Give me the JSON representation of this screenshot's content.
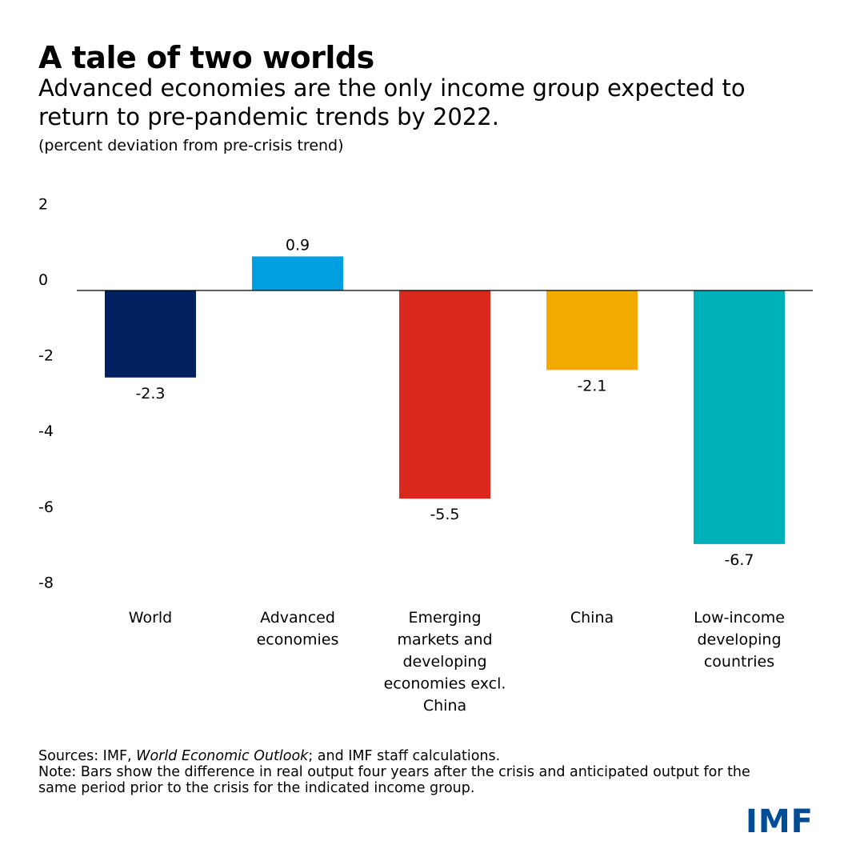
{
  "header": {
    "title": "A tale of two worlds",
    "subtitle": "Advanced economies are the only income group expected to return to pre-pandemic trends by 2022.",
    "unit": "(percent deviation from pre-crisis trend)"
  },
  "chart_data": {
    "type": "bar",
    "title": "A tale of two worlds",
    "ylabel": "percent deviation from pre-crisis trend",
    "xlabel": "",
    "ylim": [
      -8,
      2
    ],
    "yticks": [
      2,
      0,
      -2,
      -4,
      -6,
      -8
    ],
    "ytick_labels": [
      "2",
      "0",
      "-2",
      "-4",
      "-6",
      "-8"
    ],
    "categories": [
      [
        "World"
      ],
      [
        "Advanced",
        "economies"
      ],
      [
        "Emerging",
        "markets and",
        "developing",
        "economies excl.",
        "China"
      ],
      [
        "China"
      ],
      [
        "Low-income",
        "developing",
        "countries"
      ]
    ],
    "values": [
      -2.3,
      0.9,
      -5.5,
      -2.1,
      -6.7
    ],
    "value_labels": [
      "-2.3",
      "0.9",
      "-5.5",
      "-2.1",
      "-6.7"
    ],
    "colors": [
      "#002060",
      "#009fdf",
      "#da291c",
      "#f2a900",
      "#00b0b9"
    ],
    "grid": false
  },
  "footer": {
    "sources_prefix": "Sources: IMF,",
    "sources_italic": "World Economic Outlook",
    "sources_suffix": "; and IMF staff calculations.",
    "note": "Note: Bars show the difference in real output four years after the crisis and anticipated output for the same period prior to the crisis for the indicated income group."
  },
  "logo": {
    "text": "IMF",
    "color": "#004c97"
  }
}
